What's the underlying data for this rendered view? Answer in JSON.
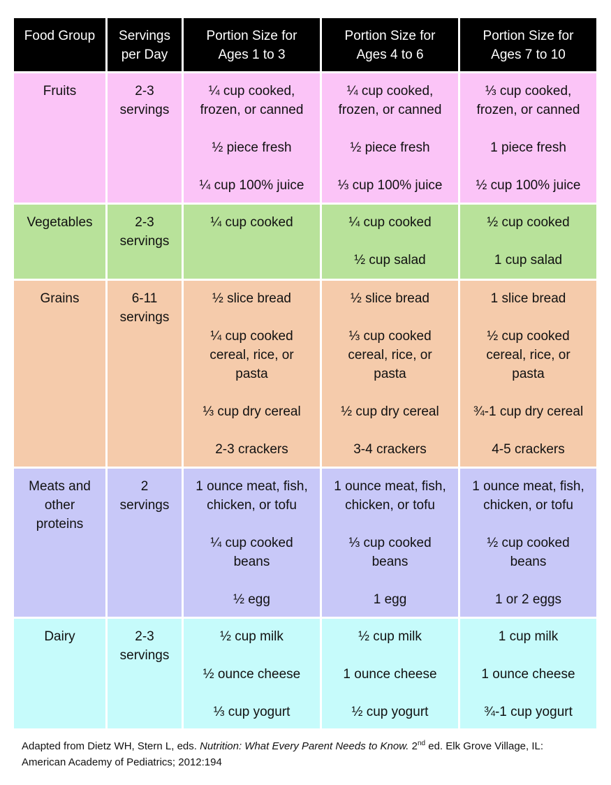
{
  "header": {
    "food_group": "Food Group",
    "servings_l1": "Servings",
    "servings_l2": "per Day",
    "age1_l1": "Portion Size for",
    "age1_l2": "Ages 1 to 3",
    "age2_l1": "Portion Size for",
    "age2_l2": "Ages 4 to 6",
    "age3_l1": "Portion Size for",
    "age3_l2": "Ages 7 to 10"
  },
  "colors": {
    "fruits": "#fbc4f7",
    "vegetables": "#b8e29a",
    "grains": "#f5cbab",
    "meats": "#c8c8f8",
    "dairy": "#c6fbfb",
    "header": "#000000"
  },
  "rows": [
    {
      "group": [
        "Fruits"
      ],
      "servings": [
        "2-3",
        "servings"
      ],
      "age1": [
        [
          "¼ cup cooked,",
          "frozen, or canned"
        ],
        [
          "½ piece fresh"
        ],
        [
          "¼ cup 100% juice"
        ]
      ],
      "age2": [
        [
          "¼ cup cooked,",
          "frozen, or canned"
        ],
        [
          "½ piece fresh"
        ],
        [
          "⅓ cup 100% juice"
        ]
      ],
      "age3": [
        [
          "⅓ cup cooked,",
          "frozen, or canned"
        ],
        [
          "1 piece fresh"
        ],
        [
          "½ cup 100% juice"
        ]
      ]
    },
    {
      "group": [
        "Vegetables"
      ],
      "servings": [
        "2-3",
        "servings"
      ],
      "age1": [
        [
          "¼ cup cooked"
        ]
      ],
      "age2": [
        [
          "¼ cup cooked"
        ],
        [
          "½ cup salad"
        ]
      ],
      "age3": [
        [
          "½ cup cooked"
        ],
        [
          "1 cup salad"
        ]
      ]
    },
    {
      "group": [
        "Grains"
      ],
      "servings": [
        "6-11",
        "servings"
      ],
      "age1": [
        [
          "½ slice bread"
        ],
        [
          "¼ cup cooked",
          "cereal, rice, or",
          "pasta"
        ],
        [
          "⅓ cup dry cereal"
        ],
        [
          "2-3 crackers"
        ]
      ],
      "age2": [
        [
          "½ slice bread"
        ],
        [
          "⅓ cup cooked",
          "cereal, rice, or",
          "pasta"
        ],
        [
          "½ cup dry cereal"
        ],
        [
          "3-4 crackers"
        ]
      ],
      "age3": [
        [
          "1 slice bread"
        ],
        [
          "½ cup cooked",
          "cereal, rice, or",
          "pasta"
        ],
        [
          "¾-1 cup dry cereal"
        ],
        [
          "4-5 crackers"
        ]
      ]
    },
    {
      "group": [
        "Meats and",
        "other",
        "proteins"
      ],
      "servings": [
        "2",
        "servings"
      ],
      "age1": [
        [
          "1 ounce meat, fish,",
          "chicken, or tofu"
        ],
        [
          "¼ cup cooked",
          "beans"
        ],
        [
          "½ egg"
        ]
      ],
      "age2": [
        [
          "1 ounce meat, fish,",
          "chicken, or tofu"
        ],
        [
          "⅓ cup cooked",
          "beans"
        ],
        [
          "1 egg"
        ]
      ],
      "age3": [
        [
          "1 ounce meat, fish,",
          "chicken, or tofu"
        ],
        [
          "½ cup cooked",
          "beans"
        ],
        [
          "1 or 2 eggs"
        ]
      ]
    },
    {
      "group": [
        "Dairy"
      ],
      "servings": [
        "2-3",
        "servings"
      ],
      "age1": [
        [
          "½ cup milk"
        ],
        [
          "½ ounce cheese"
        ],
        [
          "⅓ cup yogurt"
        ]
      ],
      "age2": [
        [
          "½ cup milk"
        ],
        [
          "1 ounce cheese"
        ],
        [
          "½ cup yogurt"
        ]
      ],
      "age3": [
        [
          "1 cup milk"
        ],
        [
          "1 ounce cheese"
        ],
        [
          "¾-1 cup yogurt"
        ]
      ]
    }
  ],
  "citation": {
    "pre": "Adapted from Dietz WH, Stern L, eds. ",
    "title": "Nutrition: What Every Parent Needs to Know.",
    "edition_num": " 2",
    "edition_sup": "nd",
    "post": " ed. Elk Grove Village, IL: American Academy of Pediatrics; 2012:194"
  }
}
